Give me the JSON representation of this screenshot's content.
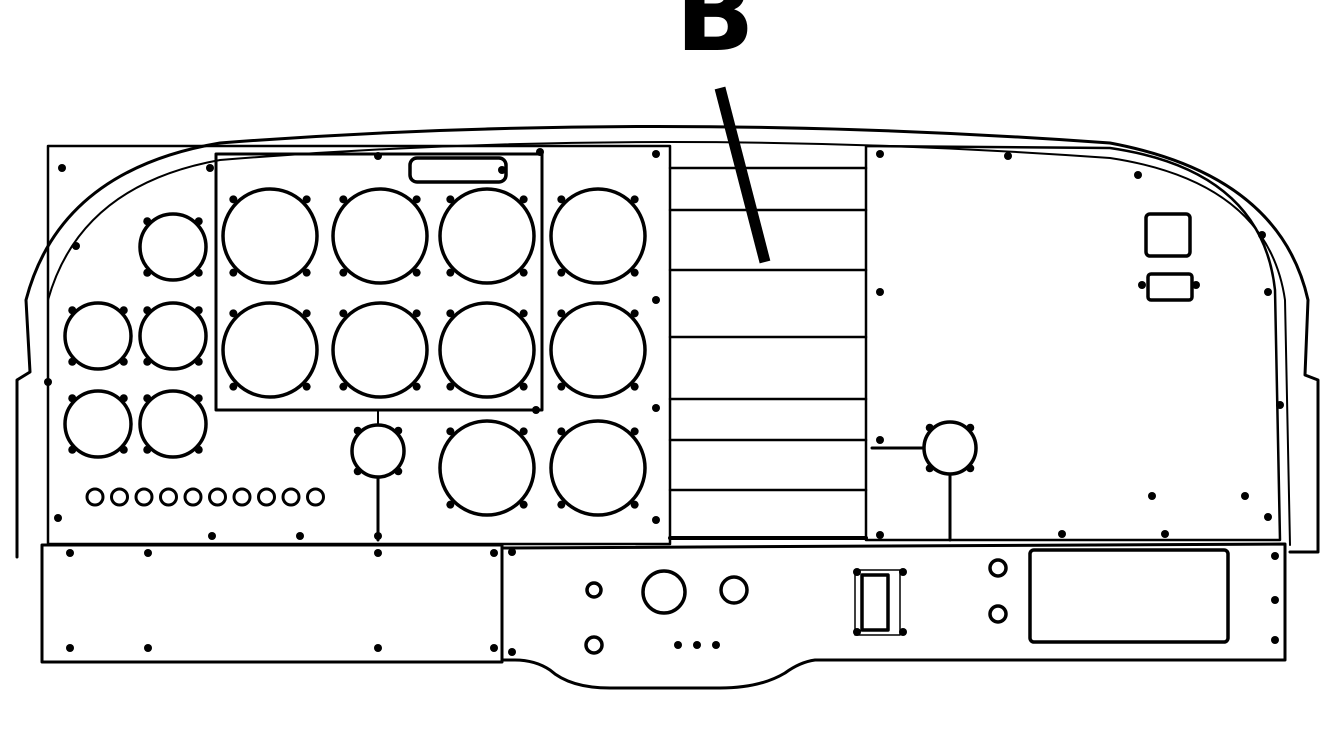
{
  "diagram": {
    "callout_label": "B",
    "line_color": "#000000",
    "background_color": "#ffffff"
  }
}
